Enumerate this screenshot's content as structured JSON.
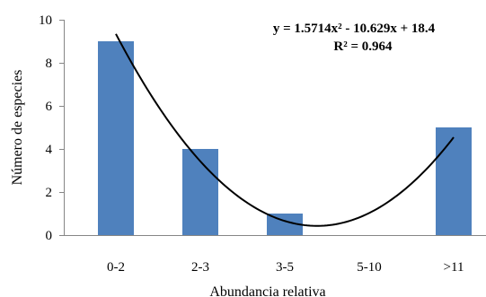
{
  "chart_data": {
    "type": "bar",
    "categories": [
      "0-2",
      "2-3",
      "3-5",
      "5-10",
      ">11"
    ],
    "values": [
      9,
      4,
      1,
      0,
      5
    ],
    "xlabel": "Abundancia relativa",
    "ylabel": "Número de especies",
    "ylim": [
      0,
      10
    ],
    "yticks": [
      "0",
      "2",
      "4",
      "6",
      "8",
      "10"
    ],
    "bar_color": "#4F81BD",
    "grid": false,
    "trendline": {
      "type": "polynomial",
      "order": 2,
      "coefficients": [
        1.5714,
        -10.629,
        18.4
      ],
      "color": "#000000",
      "equation": "y = 1.5714x² - 10.629x + 18.4",
      "r_squared_label": "R² = 0.964"
    }
  }
}
